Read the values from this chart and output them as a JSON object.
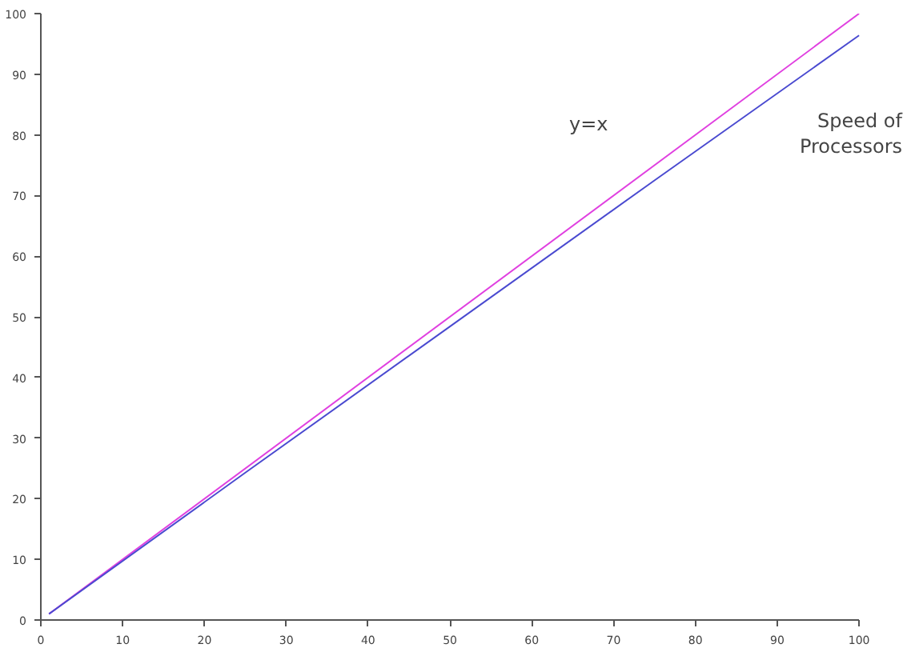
{
  "chart_data": {
    "type": "line",
    "x": [
      1,
      100
    ],
    "xlim": [
      0,
      100
    ],
    "ylim": [
      0,
      100
    ],
    "xticks": [
      0,
      10,
      20,
      30,
      40,
      50,
      60,
      70,
      80,
      90,
      100
    ],
    "yticks": [
      0,
      10,
      20,
      30,
      40,
      50,
      60,
      70,
      80,
      90,
      100
    ],
    "series": [
      {
        "color": "#e040e0",
        "values": [
          1,
          100
        ]
      },
      {
        "color": "#4a4ad0",
        "x": [
          1,
          25,
          50,
          75,
          100
        ],
        "values": [
          1,
          24.3,
          48.4,
          72.5,
          96.4
        ]
      }
    ],
    "annotations": [
      "y=x",
      "Speed of\nProcessors"
    ],
    "grid": false,
    "marker": "none",
    "line_style": "solid"
  }
}
